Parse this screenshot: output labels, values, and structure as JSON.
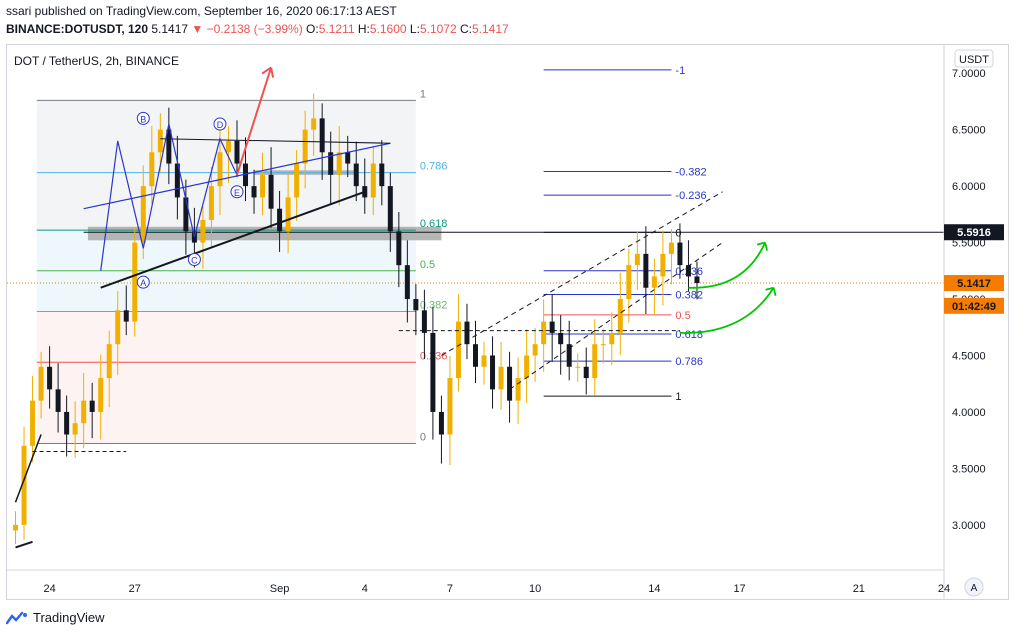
{
  "header": {
    "published": "ssari published on TradingView.com, September 16, 2020 06:17:13 AEST",
    "symbol": "BINANCE:DOTUSDT, 120",
    "last": "5.1417",
    "change": "▼ −0.2138 (−3.99%)",
    "open_label": "O:",
    "open": "5.1211",
    "high_label": "H:",
    "high": "5.1600",
    "low_label": "L:",
    "low": "5.1072",
    "close_label": "C:",
    "close": "5.1417"
  },
  "chart_title": "DOT / TetherUS, 2h, BINANCE",
  "currency_button": "USDT",
  "auto_button": "A",
  "footer": {
    "brand": "TradingView"
  },
  "colors": {
    "up": "#f0b000",
    "down": "#131722",
    "red": "#ef5350",
    "blue": "#2a35cc",
    "green": "#00c800"
  },
  "chart_data": {
    "type": "candlestick",
    "ylim": [
      2.6,
      7.25
    ],
    "xlim": [
      -1,
      109
    ],
    "y_ticks": [
      "7.0000",
      "6.5000",
      "6.0000",
      "5.5000",
      "5.0000",
      "4.5000",
      "4.0000",
      "3.5000",
      "3.0000"
    ],
    "y_tick_values": [
      7.0,
      6.5,
      6.0,
      5.5,
      5.0,
      4.5,
      4.0,
      3.5,
      3.0
    ],
    "x_ticks": [
      {
        "label": "24",
        "i": 4
      },
      {
        "label": "27",
        "i": 14
      },
      {
        "label": "Sep",
        "i": 31
      },
      {
        "label": "4",
        "i": 41
      },
      {
        "label": "7",
        "i": 51
      },
      {
        "label": "10",
        "i": 61
      },
      {
        "label": "14",
        "i": 75
      },
      {
        "label": "17",
        "i": 85
      },
      {
        "label": "21",
        "i": 99
      },
      {
        "label": "24",
        "i": 109
      }
    ],
    "price_tags": [
      {
        "label": "5.5916",
        "value": 5.5916,
        "bg": "#131722",
        "fg": "#ffffff"
      },
      {
        "label": "5.1417",
        "value": 5.1417,
        "bg": "#f57c00",
        "fg": "#131722"
      },
      {
        "label": "01:42:49",
        "value": 4.94,
        "bg": "#f57c00",
        "fg": "#131722"
      }
    ],
    "closes": [
      3.0,
      3.7,
      4.1,
      4.4,
      4.2,
      4.0,
      3.8,
      3.9,
      4.1,
      4.0,
      4.3,
      4.6,
      4.9,
      4.8,
      5.5,
      6.0,
      6.3,
      6.5,
      6.2,
      5.9,
      5.6,
      5.5,
      5.7,
      6.0,
      6.3,
      6.4,
      6.2,
      6.0,
      5.9,
      6.1,
      5.8,
      5.6,
      5.9,
      6.2,
      6.5,
      6.6,
      6.3,
      6.1,
      6.3,
      6.2,
      6.0,
      5.9,
      6.2,
      6.0,
      5.6,
      5.3,
      5.0,
      4.9,
      4.7,
      4.0,
      3.8,
      4.3,
      4.8,
      4.6,
      4.4,
      4.5,
      4.2,
      4.4,
      4.1,
      4.3,
      4.5,
      4.6,
      4.8,
      4.7,
      4.6,
      4.4,
      4.4,
      4.3,
      4.6,
      4.6,
      4.7,
      5.0,
      5.3,
      5.4,
      5.1,
      5.2,
      5.4,
      5.5,
      5.3,
      5.2,
      5.1417
    ]
  },
  "fib_left": {
    "levels": [
      {
        "label": "1",
        "value": 6.76,
        "color": "#787b86"
      },
      {
        "label": "0.786",
        "value": 6.12,
        "color": "#4fb3e8"
      },
      {
        "label": "0.618",
        "value": 5.61,
        "color": "#089981"
      },
      {
        "label": "0.5",
        "value": 5.25,
        "color": "#4caf50"
      },
      {
        "label": "0.382",
        "value": 4.89,
        "color": "#66bb6a"
      },
      {
        "label": "0.236",
        "value": 4.44,
        "color": "#ef5350"
      },
      {
        "label": "0",
        "value": 3.72,
        "color": "#787b86"
      }
    ]
  },
  "fib_right": {
    "levels": [
      {
        "label": "-1",
        "value": 7.03,
        "color": "#2a35cc"
      },
      {
        "label": "-0.382",
        "value": 6.13,
        "color": "#2a35cc"
      },
      {
        "label": "-0.236",
        "value": 5.92,
        "color": "#2a35cc"
      },
      {
        "label": "0",
        "value": 5.59,
        "color": "#131722"
      },
      {
        "label": "0.236",
        "value": 5.25,
        "color": "#2a35cc"
      },
      {
        "label": "0.382",
        "value": 5.04,
        "color": "#2a35cc"
      },
      {
        "label": "0.5",
        "value": 4.86,
        "color": "#ef5350"
      },
      {
        "label": "0.618",
        "value": 4.69,
        "color": "#2a35cc"
      },
      {
        "label": "0.786",
        "value": 4.45,
        "color": "#2a35cc"
      },
      {
        "label": "1",
        "value": 4.14,
        "color": "#131722"
      }
    ]
  },
  "wave_labels": [
    "A",
    "B",
    "C",
    "D",
    "E"
  ]
}
